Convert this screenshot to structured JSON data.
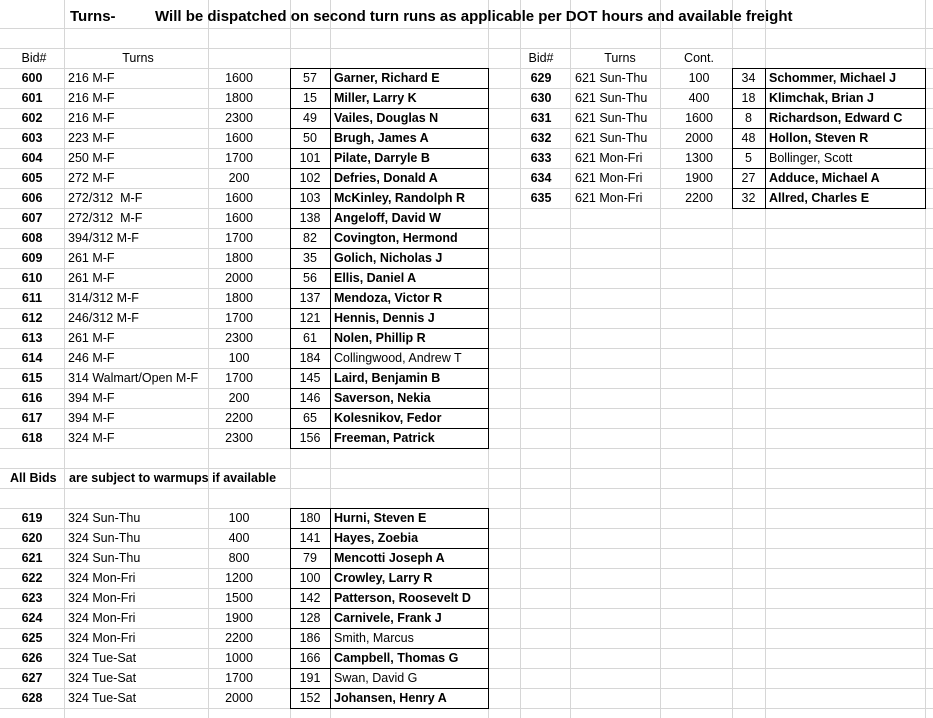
{
  "header": {
    "label": "Turns-",
    "title": "Will be dispatched on second turn runs as applicable per DOT hours and available freight"
  },
  "column_headers": {
    "left": [
      "Bid#",
      "Turns"
    ],
    "right": [
      "Bid#",
      "Turns",
      "Cont."
    ]
  },
  "blocks": {
    "left_top": {
      "rows": [
        {
          "bid": 600,
          "turns": "216 M-F",
          "time": 1600,
          "num": 57,
          "name": "Garner, Richard E",
          "bold": true
        },
        {
          "bid": 601,
          "turns": "216 M-F",
          "time": 1800,
          "num": 15,
          "name": "Miller, Larry K",
          "bold": true
        },
        {
          "bid": 602,
          "turns": "216 M-F",
          "time": 2300,
          "num": 49,
          "name": "Vailes, Douglas N",
          "bold": true
        },
        {
          "bid": 603,
          "turns": "223 M-F",
          "time": 1600,
          "num": 50,
          "name": "Brugh, James A",
          "bold": true
        },
        {
          "bid": 604,
          "turns": "250 M-F",
          "time": 1700,
          "num": 101,
          "name": "Pilate, Darryle B",
          "bold": true
        },
        {
          "bid": 605,
          "turns": "272 M-F",
          "time": 200,
          "num": 102,
          "name": "Defries, Donald A",
          "bold": true
        },
        {
          "bid": 606,
          "turns": "272/312  M-F",
          "time": 1600,
          "num": 103,
          "name": "McKinley, Randolph R",
          "bold": true
        },
        {
          "bid": 607,
          "turns": "272/312  M-F",
          "time": 1600,
          "num": 138,
          "name": "Angeloff, David W",
          "bold": true
        },
        {
          "bid": 608,
          "turns": "394/312 M-F",
          "time": 1700,
          "num": 82,
          "name": "Covington, Hermond",
          "bold": true
        },
        {
          "bid": 609,
          "turns": "261 M-F",
          "time": 1800,
          "num": 35,
          "name": "Golich, Nicholas J",
          "bold": true
        },
        {
          "bid": 610,
          "turns": "261 M-F",
          "time": 2000,
          "num": 56,
          "name": "Ellis, Daniel A",
          "bold": true
        },
        {
          "bid": 611,
          "turns": "314/312 M-F",
          "time": 1800,
          "num": 137,
          "name": "Mendoza, Victor R",
          "bold": true
        },
        {
          "bid": 612,
          "turns": "246/312 M-F",
          "time": 1700,
          "num": 121,
          "name": "Hennis, Dennis J",
          "bold": true
        },
        {
          "bid": 613,
          "turns": "261 M-F",
          "time": 2300,
          "num": 61,
          "name": "Nolen, Phillip R",
          "bold": true
        },
        {
          "bid": 614,
          "turns": "246 M-F",
          "time": 100,
          "num": 184,
          "name": "Collingwood, Andrew T",
          "bold": false
        },
        {
          "bid": 615,
          "turns": "314 Walmart/Open M-F",
          "time": 1700,
          "num": 145,
          "name": "Laird, Benjamin B",
          "bold": true
        },
        {
          "bid": 616,
          "turns": "394 M-F",
          "time": 200,
          "num": 146,
          "name": "Saverson, Nekia",
          "bold": true
        },
        {
          "bid": 617,
          "turns": "394 M-F",
          "time": 2200,
          "num": 65,
          "name": "Kolesnikov, Fedor",
          "bold": true
        },
        {
          "bid": 618,
          "turns": "324 M-F",
          "time": 2300,
          "num": 156,
          "name": "Freeman, Patrick",
          "bold": true
        }
      ]
    },
    "left_bottom": {
      "rows": [
        {
          "bid": 619,
          "turns": "324 Sun-Thu",
          "time": 100,
          "num": 180,
          "name": "Hurni, Steven E",
          "bold": true
        },
        {
          "bid": 620,
          "turns": "324 Sun-Thu",
          "time": 400,
          "num": 141,
          "name": "Hayes, Zoebia",
          "bold": true
        },
        {
          "bid": 621,
          "turns": "324 Sun-Thu",
          "time": 800,
          "num": 79,
          "name": "Mencotti Joseph A",
          "bold": true
        },
        {
          "bid": 622,
          "turns": "324 Mon-Fri",
          "time": 1200,
          "num": 100,
          "name": "Crowley, Larry R",
          "bold": true
        },
        {
          "bid": 623,
          "turns": "324 Mon-Fri",
          "time": 1500,
          "num": 142,
          "name": "Patterson, Roosevelt D",
          "bold": true
        },
        {
          "bid": 624,
          "turns": "324 Mon-Fri",
          "time": 1900,
          "num": 128,
          "name": "Carnivele, Frank J",
          "bold": true
        },
        {
          "bid": 625,
          "turns": "324 Mon-Fri",
          "time": 2200,
          "num": 186,
          "name": "Smith, Marcus",
          "bold": false
        },
        {
          "bid": 626,
          "turns": "324 Tue-Sat",
          "time": 1000,
          "num": 166,
          "name": "Campbell, Thomas G",
          "bold": true
        },
        {
          "bid": 627,
          "turns": "324 Tue-Sat",
          "time": 1700,
          "num": 191,
          "name": "Swan, David G",
          "bold": false
        },
        {
          "bid": 628,
          "turns": "324 Tue-Sat",
          "time": 2000,
          "num": 152,
          "name": "Johansen, Henry A",
          "bold": true
        }
      ]
    },
    "right": {
      "rows": [
        {
          "bid": 629,
          "turns": "621 Sun-Thu",
          "time": 100,
          "num": 34,
          "name": "Schommer, Michael J",
          "bold": true
        },
        {
          "bid": 630,
          "turns": "621 Sun-Thu",
          "time": 400,
          "num": 18,
          "name": "Klimchak, Brian J",
          "bold": true
        },
        {
          "bid": 631,
          "turns": "621 Sun-Thu",
          "time": 1600,
          "num": 8,
          "name": "Richardson, Edward C",
          "bold": true
        },
        {
          "bid": 632,
          "turns": "621 Sun-Thu",
          "time": 2000,
          "num": 48,
          "name": "Hollon, Steven R",
          "bold": true
        },
        {
          "bid": 633,
          "turns": "621 Mon-Fri",
          "time": 1300,
          "num": 5,
          "name": "Bollinger, Scott",
          "bold": false
        },
        {
          "bid": 634,
          "turns": "621 Mon-Fri",
          "time": 1900,
          "num": 27,
          "name": "Adduce, Michael A",
          "bold": true
        },
        {
          "bid": 635,
          "turns": "621 Mon-Fri",
          "time": 2200,
          "num": 32,
          "name": "Allred, Charles E",
          "bold": true
        }
      ]
    }
  },
  "note": {
    "label": "All Bids",
    "text": "are subject to warmups if available"
  }
}
